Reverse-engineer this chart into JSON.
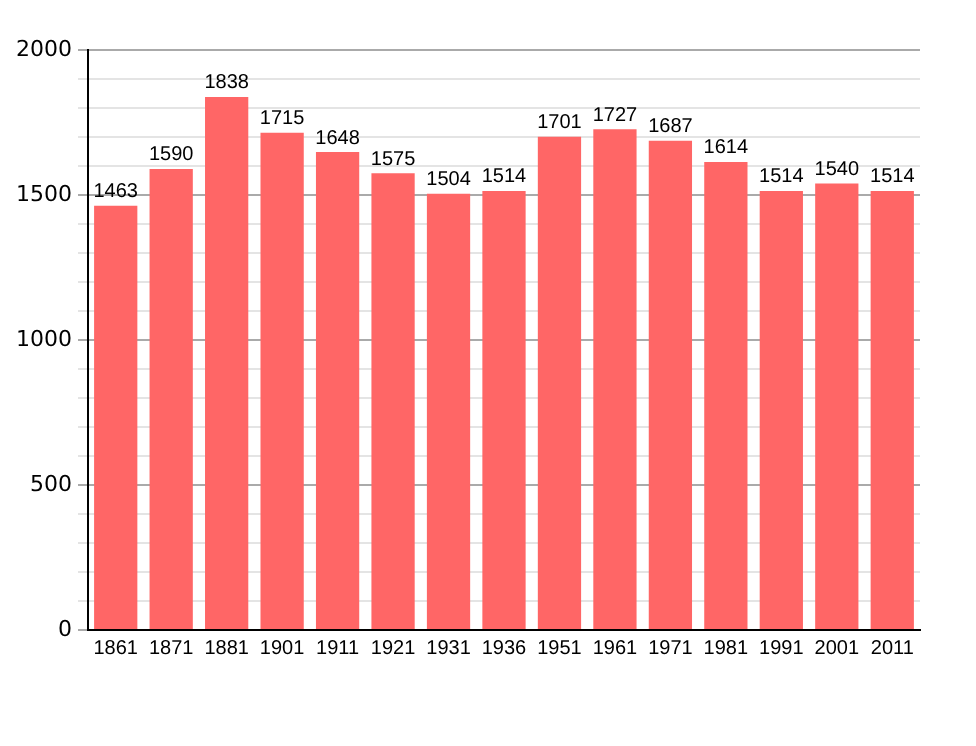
{
  "chart_data": {
    "type": "bar",
    "categories": [
      "1861",
      "1871",
      "1881",
      "1901",
      "1911",
      "1921",
      "1931",
      "1936",
      "1951",
      "1961",
      "1971",
      "1981",
      "1991",
      "2001",
      "2011"
    ],
    "values": [
      1463,
      1590,
      1838,
      1715,
      1648,
      1575,
      1504,
      1514,
      1701,
      1727,
      1687,
      1614,
      1514,
      1540,
      1514
    ],
    "color": "#ff6666",
    "data_labels": true,
    "grid": "y",
    "legend": false,
    "ylim": [
      0,
      2000
    ],
    "yticks": [
      0,
      {
        "value": 100,
        "label": null
      },
      {
        "value": 200,
        "label": null
      },
      {
        "value": 300,
        "label": null
      },
      {
        "value": 400,
        "label": null
      },
      500,
      {
        "value": 600,
        "label": null
      },
      {
        "value": 700,
        "label": null
      },
      {
        "value": 800,
        "label": null
      },
      {
        "value": 900,
        "label": null
      },
      1000,
      {
        "value": 1100,
        "label": null
      },
      {
        "value": 1200,
        "label": null
      },
      {
        "value": 1300,
        "label": null
      },
      {
        "value": 1400,
        "label": null
      },
      1500,
      {
        "value": 1600,
        "label": null
      },
      {
        "value": 1700,
        "label": null
      },
      {
        "value": 1800,
        "label": null
      },
      {
        "value": 1900,
        "label": null
      },
      2000
    ]
  }
}
